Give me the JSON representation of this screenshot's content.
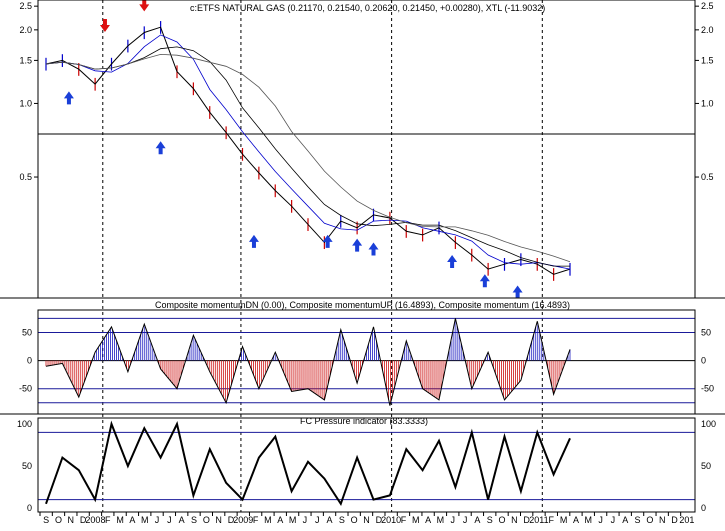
{
  "chart_data": [
    {
      "type": "line",
      "panel": "price",
      "title": "c:ETFS NATURAL GAS (0.21170, 0.21540, 0.20620, 0.21450, +0.00280), XTL (-11.9032)",
      "yscale": "log",
      "ylim": [
        0.16,
        2.6
      ],
      "y_ticks": [
        "2.5",
        "2.0",
        "1.5",
        "1.0",
        "0.5"
      ],
      "y_tick_values": [
        2.5,
        2.0,
        1.5,
        1.0,
        0.5
      ],
      "reference_line": 0.75,
      "series": [
        {
          "role": "close",
          "color": "#000000",
          "x": [
            0,
            1,
            2,
            3,
            4,
            5,
            6,
            7,
            8,
            9,
            10,
            11,
            12,
            13,
            14,
            15,
            16,
            17,
            18,
            19,
            20,
            21,
            22,
            23,
            24,
            25,
            26,
            27,
            28,
            29,
            30,
            31,
            32
          ],
          "values": [
            1.45,
            1.5,
            1.38,
            1.2,
            1.45,
            1.72,
            1.95,
            2.05,
            1.35,
            1.15,
            0.92,
            0.76,
            0.62,
            0.52,
            0.44,
            0.38,
            0.32,
            0.27,
            0.33,
            0.31,
            0.35,
            0.34,
            0.3,
            0.29,
            0.31,
            0.27,
            0.24,
            0.21,
            0.22,
            0.23,
            0.22,
            0.2,
            0.21
          ]
        }
      ],
      "up_arrows": [
        {
          "x": 1.4,
          "y": 1.12
        },
        {
          "x": 7.0,
          "y": 0.7
        },
        {
          "x": 12.7,
          "y": 0.29
        },
        {
          "x": 17.2,
          "y": 0.29
        },
        {
          "x": 19.0,
          "y": 0.28
        },
        {
          "x": 20.0,
          "y": 0.27
        },
        {
          "x": 24.8,
          "y": 0.24
        },
        {
          "x": 26.8,
          "y": 0.2
        },
        {
          "x": 28.8,
          "y": 0.18
        }
      ],
      "down_arrows": [
        {
          "x": 3.6,
          "y": 1.96
        },
        {
          "x": 6.0,
          "y": 2.38
        }
      ]
    },
    {
      "type": "area",
      "panel": "momentum",
      "title": "Composite momentumDN (0.00), Composite momentumUP (16.4893), Composite momentum (16.4893)",
      "ylim": [
        -95,
        90
      ],
      "y_ticks": [
        "50",
        "0",
        "-50"
      ],
      "y_tick_values": [
        50,
        0,
        -50
      ],
      "reference_lines": [
        75,
        50,
        -50,
        -75
      ],
      "series": [
        {
          "name": "Composite momentum",
          "x": [
            0,
            1,
            2,
            3,
            4,
            5,
            6,
            7,
            8,
            9,
            10,
            11,
            12,
            13,
            14,
            15,
            16,
            17,
            18,
            19,
            20,
            21,
            22,
            23,
            24,
            25,
            26,
            27,
            28,
            29,
            30,
            31,
            32
          ],
          "values": [
            -10,
            -5,
            -65,
            15,
            60,
            -20,
            65,
            -15,
            -50,
            45,
            -20,
            -75,
            25,
            -50,
            15,
            -55,
            -50,
            -70,
            55,
            -40,
            60,
            -80,
            35,
            -50,
            -70,
            75,
            -50,
            15,
            -70,
            -35,
            70,
            -60,
            20
          ]
        }
      ]
    },
    {
      "type": "line",
      "panel": "pressure",
      "title": "FC Pressure indicator (83.3333)",
      "ylim": [
        0,
        100
      ],
      "y_ticks": [
        "100",
        "50",
        "0"
      ],
      "y_tick_values": [
        100,
        50,
        0
      ],
      "reference_lines": [
        90,
        10
      ],
      "x_labels": [
        "S",
        "O",
        "N",
        "D",
        "2008",
        "F",
        "M",
        "A",
        "M",
        "J",
        "J",
        "A",
        "S",
        "O",
        "N",
        "D",
        "2009",
        "F",
        "M",
        "A",
        "M",
        "J",
        "J",
        "A",
        "S",
        "O",
        "N",
        "D",
        "2010",
        "F",
        "M",
        "A",
        "M",
        "J",
        "J",
        "A",
        "S",
        "O",
        "N",
        "D",
        "2011",
        "F",
        "M",
        "A",
        "M",
        "J",
        "J",
        "A",
        "S",
        "O",
        "N",
        "D",
        "201"
      ],
      "series": [
        {
          "name": "FC Pressure indicator",
          "x": [
            0,
            1,
            2,
            3,
            4,
            5,
            6,
            7,
            8,
            9,
            10,
            11,
            12,
            13,
            14,
            15,
            16,
            17,
            18,
            19,
            20,
            21,
            22,
            23,
            24,
            25,
            26,
            27,
            28,
            29,
            30,
            31,
            32
          ],
          "values": [
            5,
            60,
            45,
            10,
            100,
            50,
            95,
            60,
            100,
            15,
            70,
            30,
            10,
            60,
            85,
            20,
            55,
            35,
            5,
            60,
            10,
            15,
            70,
            45,
            80,
            25,
            90,
            10,
            85,
            20,
            90,
            40,
            83
          ]
        }
      ]
    }
  ]
}
